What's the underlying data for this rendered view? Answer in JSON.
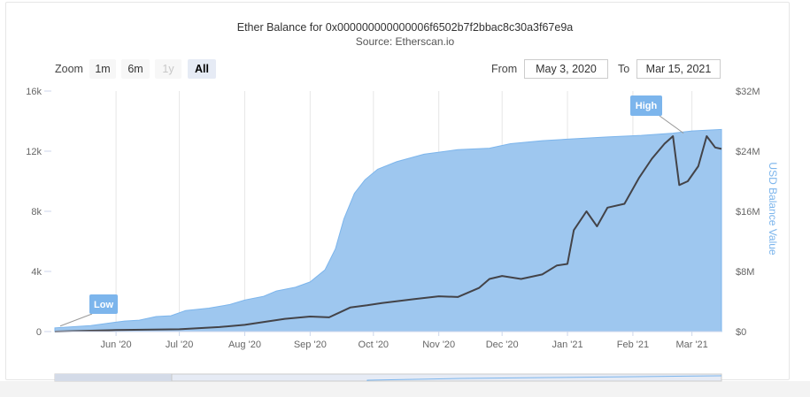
{
  "title": "Ether Balance for 0x000000000000006f6502b7f2bbac8c30a3f67e9a",
  "subtitle": "Source: Etherscan.io",
  "range_selector": {
    "zoom_label": "Zoom",
    "buttons": [
      {
        "label": "1m",
        "state": "normal"
      },
      {
        "label": "6m",
        "state": "normal"
      },
      {
        "label": "1y",
        "state": "disabled"
      },
      {
        "label": "All",
        "state": "active"
      }
    ],
    "from_label": "From",
    "from_value": "May 3, 2020",
    "to_label": "To",
    "to_value": "Mar 15, 2021"
  },
  "colors": {
    "area_fill": "#9ec7ef",
    "area_stroke": "#7cb5ec",
    "line": "#434348",
    "flag_fill": "#7cb5ec",
    "grid": "#e6e6e6",
    "right_axis_title": "#7cb5ec"
  },
  "chart_data": {
    "type": "area",
    "x_type": "datetime",
    "x_range": [
      "2020-05-03",
      "2021-03-15"
    ],
    "x_ticks": [
      "Jun '20",
      "Jul '20",
      "Aug '20",
      "Sep '20",
      "Oct '20",
      "Nov '20",
      "Dec '20",
      "Jan '21",
      "Feb '21",
      "Mar '21"
    ],
    "x_tick_dates": [
      "2020-06-01",
      "2020-07-01",
      "2020-08-01",
      "2020-09-01",
      "2020-10-01",
      "2020-11-01",
      "2020-12-01",
      "2021-01-01",
      "2021-02-01",
      "2021-03-01"
    ],
    "y_left": {
      "label": "",
      "ticks": [
        "0",
        "4k",
        "8k",
        "12k",
        "16k"
      ],
      "range": [
        0,
        16000
      ]
    },
    "y_right": {
      "label": "USD Balance Value",
      "ticks": [
        "$0",
        "$8M",
        "$16M",
        "$24M",
        "$32M"
      ],
      "range": [
        0,
        32000000
      ]
    },
    "grid": "vertical",
    "legend": "none",
    "series": [
      {
        "type": "area",
        "axis": "left",
        "points": [
          [
            "2020-05-03",
            250
          ],
          [
            "2020-05-20",
            400
          ],
          [
            "2020-06-05",
            700
          ],
          [
            "2020-06-12",
            760
          ],
          [
            "2020-06-20",
            1000
          ],
          [
            "2020-06-27",
            1050
          ],
          [
            "2020-07-04",
            1400
          ],
          [
            "2020-07-15",
            1560
          ],
          [
            "2020-07-25",
            1800
          ],
          [
            "2020-08-01",
            2100
          ],
          [
            "2020-08-10",
            2350
          ],
          [
            "2020-08-16",
            2700
          ],
          [
            "2020-08-25",
            2950
          ],
          [
            "2020-09-01",
            3300
          ],
          [
            "2020-09-08",
            4100
          ],
          [
            "2020-09-13",
            5500
          ],
          [
            "2020-09-17",
            7500
          ],
          [
            "2020-09-22",
            9200
          ],
          [
            "2020-09-27",
            10100
          ],
          [
            "2020-10-03",
            10800
          ],
          [
            "2020-10-12",
            11300
          ],
          [
            "2020-10-25",
            11800
          ],
          [
            "2020-11-10",
            12100
          ],
          [
            "2020-11-25",
            12200
          ],
          [
            "2020-12-05",
            12500
          ],
          [
            "2020-12-20",
            12700
          ],
          [
            "2021-01-01",
            12800
          ],
          [
            "2021-01-20",
            12950
          ],
          [
            "2021-02-05",
            13050
          ],
          [
            "2021-02-20",
            13200
          ],
          [
            "2021-03-01",
            13350
          ],
          [
            "2021-03-15",
            13450
          ]
        ]
      },
      {
        "type": "line",
        "axis": "right",
        "points": [
          [
            "2020-05-03",
            0
          ],
          [
            "2020-06-01",
            200000
          ],
          [
            "2020-07-01",
            300000
          ],
          [
            "2020-07-20",
            600000
          ],
          [
            "2020-08-01",
            900000
          ],
          [
            "2020-08-20",
            1700000
          ],
          [
            "2020-09-01",
            2000000
          ],
          [
            "2020-09-10",
            1900000
          ],
          [
            "2020-09-20",
            3200000
          ],
          [
            "2020-09-28",
            3500000
          ],
          [
            "2020-10-05",
            3800000
          ],
          [
            "2020-10-20",
            4300000
          ],
          [
            "2020-11-01",
            4700000
          ],
          [
            "2020-11-10",
            4600000
          ],
          [
            "2020-11-20",
            5800000
          ],
          [
            "2020-11-25",
            7000000
          ],
          [
            "2020-12-01",
            7400000
          ],
          [
            "2020-12-10",
            7000000
          ],
          [
            "2020-12-20",
            7600000
          ],
          [
            "2020-12-27",
            8800000
          ],
          [
            "2021-01-01",
            9000000
          ],
          [
            "2021-01-04",
            13500000
          ],
          [
            "2021-01-10",
            16000000
          ],
          [
            "2021-01-15",
            14000000
          ],
          [
            "2021-01-20",
            16500000
          ],
          [
            "2021-01-28",
            17000000
          ],
          [
            "2021-02-04",
            20500000
          ],
          [
            "2021-02-10",
            23000000
          ],
          [
            "2021-02-16",
            25000000
          ],
          [
            "2021-02-20",
            26000000
          ],
          [
            "2021-02-23",
            19500000
          ],
          [
            "2021-02-27",
            20000000
          ],
          [
            "2021-03-04",
            22000000
          ],
          [
            "2021-03-08",
            26000000
          ],
          [
            "2021-03-12",
            24500000
          ],
          [
            "2021-03-15",
            24300000
          ]
        ]
      }
    ],
    "annotations": [
      {
        "label": "Low",
        "date": "2020-05-03",
        "value": 250
      },
      {
        "label": "High",
        "date": "2021-02-25",
        "value": 13200
      }
    ]
  }
}
